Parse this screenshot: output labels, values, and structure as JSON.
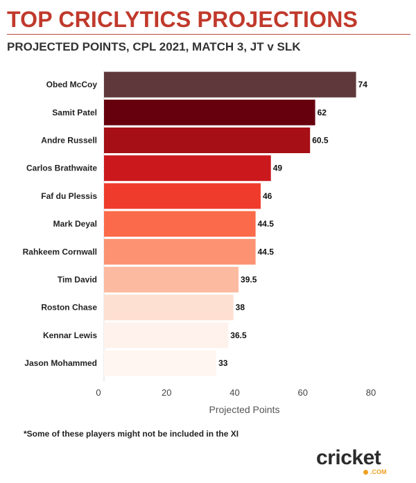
{
  "header": {
    "title": "TOP CRICLYTICS PROJECTIONS",
    "subtitle": "PROJECTED POINTS, CPL 2021, MATCH 3, JT v SLK"
  },
  "chart_data": {
    "type": "bar",
    "orientation": "horizontal",
    "categories": [
      "Obed McCoy",
      "Samit Patel",
      "Andre Russell",
      "Carlos Brathwaite",
      "Faf du Plessis",
      "Mark Deyal",
      "Rahkeem Cornwall",
      "Tim David",
      "Roston Chase",
      "Kennar Lewis",
      "Jason Mohammed"
    ],
    "values": [
      74,
      62,
      60.5,
      49,
      46,
      44.5,
      44.5,
      39.5,
      38,
      36.5,
      33
    ],
    "data_labels": [
      "74",
      "62",
      "60.5",
      "49",
      "46",
      "44.5",
      "44.5",
      "39.5",
      "38",
      "36.5",
      "33"
    ],
    "colors": [
      "#5e383a",
      "#67000d",
      "#a50f15",
      "#cb181d",
      "#ef3b2c",
      "#fb6a4a",
      "#fc9272",
      "#fcbba1",
      "#fee0d2",
      "#fff2ec",
      "#fff6f2"
    ],
    "xlabel": "Projected Points",
    "ylabel": "",
    "xlim": [
      0,
      80
    ],
    "xticks": [
      0,
      20,
      40,
      60,
      80
    ],
    "xtick_labels": [
      "0",
      "20",
      "40",
      "60",
      "80"
    ],
    "grid": false,
    "legend": "none"
  },
  "footnote": "*Some of these players might not be included in the XI",
  "logo": {
    "wordmark": "cricket",
    "suffix": ".COM",
    "accent_color": "#f0a020"
  }
}
